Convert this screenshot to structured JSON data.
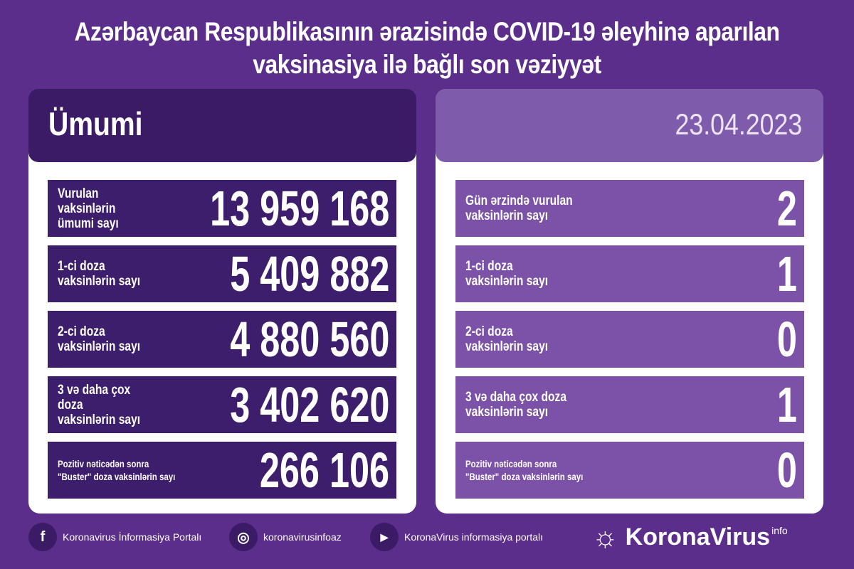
{
  "title": [
    "Azərbaycan Respublikasının ərazisində COVID-19 əleyhinə aparılan",
    "vaksinasiya ilə bağlı son vəziyyət"
  ],
  "left": {
    "header": "Ümumi",
    "rows": [
      {
        "label": "Vurulan vaksinlərin\nümumi sayı",
        "value": "13 959 168"
      },
      {
        "label": "1-ci doza\nvaksinlərin sayı",
        "value": "5 409 882"
      },
      {
        "label": "2-ci doza\nvaksinlərin sayı",
        "value": "4 880 560"
      },
      {
        "label": "3 və daha çox doza\nvaksinlərin sayı",
        "value": "3 402 620"
      },
      {
        "label": "Pozitiv nəticədən sonra\n\"Buster\" doza vaksinlərin sayı",
        "value": "266 106"
      }
    ]
  },
  "right": {
    "header": "23.04.2023",
    "rows": [
      {
        "label": "Gün ərzində vurulan\nvaksinlərin sayı",
        "value": "2"
      },
      {
        "label": "1-ci doza\nvaksinlərin sayı",
        "value": "1"
      },
      {
        "label": "2-ci doza\nvaksinlərin sayı",
        "value": "0"
      },
      {
        "label": "3 və daha çox doza\nvaksinlərin sayı",
        "value": "1"
      },
      {
        "label": "Pozitiv nəticədən sonra\n\"Buster\" doza vaksinlərin sayı",
        "value": "0"
      }
    ]
  },
  "footer": {
    "facebook": "Koronavirus İnformasiya Portalı",
    "instagram": "koronavirusinfoaz",
    "youtube": "KoronaVirus informasiya portalı",
    "logo": "KoronaVirus",
    "logo_sup": "info"
  }
}
